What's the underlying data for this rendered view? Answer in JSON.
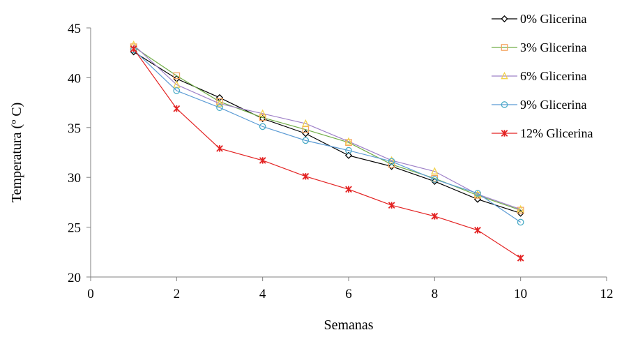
{
  "chart_data": {
    "type": "line",
    "title": "",
    "xlabel": "Semanas",
    "ylabel": "Temperatura (º C)",
    "xlim": [
      0,
      12
    ],
    "ylim": [
      20,
      45
    ],
    "xticks": [
      0,
      2,
      4,
      6,
      8,
      10,
      12
    ],
    "yticks": [
      20,
      25,
      30,
      35,
      40,
      45
    ],
    "grid": false,
    "legend_position": "top-right",
    "x": [
      1,
      2,
      3,
      4,
      5,
      6,
      7,
      8,
      9,
      10
    ],
    "series": [
      {
        "name": "0% Glicerina",
        "color": "#000000",
        "marker": "diamond",
        "values": [
          42.6,
          39.9,
          38.0,
          35.9,
          34.4,
          32.2,
          31.1,
          29.6,
          27.8,
          26.4
        ]
      },
      {
        "name": "3% Glicerina",
        "color": "#70AD47",
        "marker_color": "#F4A460",
        "marker": "square",
        "values": [
          43.1,
          40.2,
          37.6,
          36.0,
          34.8,
          33.5,
          31.3,
          29.9,
          28.2,
          26.7
        ]
      },
      {
        "name": "6% Glicerina",
        "color": "#9E80C8",
        "marker_color": "#F2D24A",
        "marker": "triangle",
        "values": [
          43.3,
          39.3,
          37.4,
          36.4,
          35.4,
          33.6,
          31.7,
          30.6,
          28.3,
          26.8
        ]
      },
      {
        "name": "9% Glicerina",
        "color": "#5B9BD5",
        "marker_color": "#4BACC6",
        "marker": "circle",
        "values": [
          42.8,
          38.7,
          37.0,
          35.1,
          33.7,
          32.7,
          31.6,
          29.8,
          28.4,
          25.5
        ]
      },
      {
        "name": "12% Glicerina",
        "color": "#E32222",
        "marker": "star",
        "values": [
          42.9,
          36.9,
          32.9,
          31.7,
          30.1,
          28.8,
          27.2,
          26.1,
          24.7,
          21.9
        ]
      }
    ]
  }
}
